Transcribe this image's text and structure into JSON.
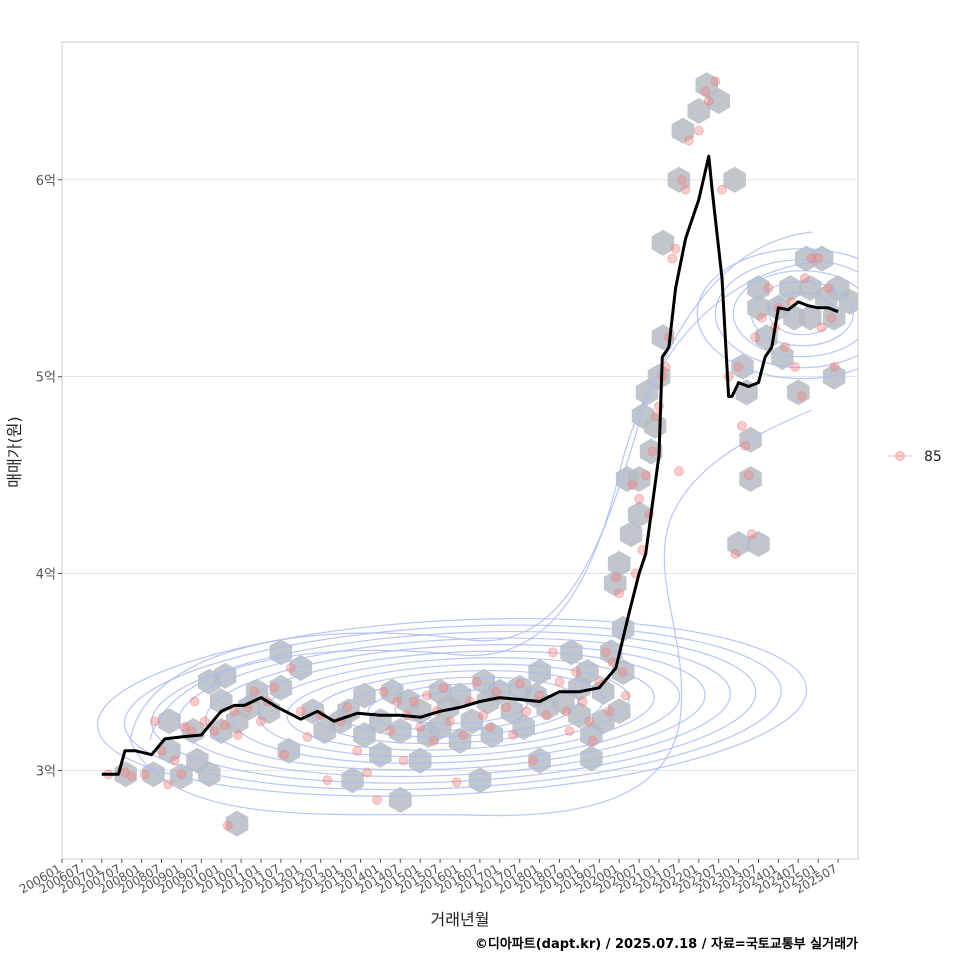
{
  "chart_data": {
    "type": "line",
    "xlabel": "거래년월",
    "ylabel": "매매가(원)",
    "caption": "©디아파트(dapt.kr) / 2025.07.18 / 자료=국토교통부 실거래가",
    "legend": {
      "position": "right",
      "entries": [
        {
          "label": "85",
          "color": "#f08080"
        }
      ]
    },
    "xlim": [
      "2006-01",
      "2026-01"
    ],
    "ylim": [
      2.55,
      6.7
    ],
    "grid": true,
    "y_unit": "억",
    "y_ticks": [
      {
        "value": 3,
        "label": "3억"
      },
      {
        "value": 4,
        "label": "4억"
      },
      {
        "value": 5,
        "label": "5억"
      },
      {
        "value": 6,
        "label": "6억"
      }
    ],
    "x_ticks": [
      "200601",
      "200607",
      "200701",
      "200707",
      "200801",
      "200807",
      "200901",
      "200907",
      "201001",
      "201007",
      "201101",
      "201107",
      "201201",
      "201207",
      "201301",
      "201307",
      "201401",
      "201407",
      "201501",
      "201507",
      "201601",
      "201607",
      "201701",
      "201707",
      "201801",
      "201807",
      "201901",
      "201907",
      "202001",
      "202007",
      "202101",
      "202107",
      "202201",
      "202207",
      "202301",
      "202307",
      "202401",
      "202407",
      "202501",
      "202507"
    ],
    "series": [
      {
        "name": "trend",
        "color": "#000000",
        "x": [
          "2007-01",
          "2007-06",
          "2007-08",
          "2007-11",
          "2008-04",
          "2008-08",
          "2009-01",
          "2009-07",
          "2010-01",
          "2010-05",
          "2010-08",
          "2011-01",
          "2011-06",
          "2012-01",
          "2012-06",
          "2012-11",
          "2013-06",
          "2014-01",
          "2014-07",
          "2015-01",
          "2015-07",
          "2016-01",
          "2016-07",
          "2017-01",
          "2017-07",
          "2018-01",
          "2018-07",
          "2019-01",
          "2019-07",
          "2019-12",
          "2020-04",
          "2020-07",
          "2020-09",
          "2021-01",
          "2021-02",
          "2021-04",
          "2021-06",
          "2021-09",
          "2022-01",
          "2022-04",
          "2022-05",
          "2022-08",
          "2022-10",
          "2022-11",
          "2023-01",
          "2023-04",
          "2023-07",
          "2023-09",
          "2023-11",
          "2024-01",
          "2024-04",
          "2024-07",
          "2024-10",
          "2025-01",
          "2025-04",
          "2025-07"
        ],
        "y": [
          2.98,
          2.98,
          3.1,
          3.1,
          3.08,
          3.16,
          3.17,
          3.18,
          3.3,
          3.33,
          3.33,
          3.37,
          3.32,
          3.26,
          3.3,
          3.25,
          3.29,
          3.28,
          3.28,
          3.27,
          3.3,
          3.32,
          3.35,
          3.37,
          3.36,
          3.35,
          3.4,
          3.4,
          3.42,
          3.52,
          3.8,
          4.0,
          4.1,
          4.6,
          5.1,
          5.15,
          5.45,
          5.7,
          5.9,
          6.12,
          5.95,
          5.5,
          4.9,
          4.9,
          4.97,
          4.95,
          4.97,
          5.1,
          5.15,
          5.35,
          5.34,
          5.38,
          5.36,
          5.35,
          5.35,
          5.33
        ]
      },
      {
        "name": "85",
        "type": "scatter",
        "color": "#f08080",
        "x": [
          "2007-03",
          "2007-08",
          "2007-10",
          "2008-02",
          "2008-05",
          "2008-07",
          "2008-09",
          "2008-11",
          "2009-01",
          "2009-02",
          "2009-04",
          "2009-05",
          "2009-08",
          "2009-11",
          "2010-02",
          "2010-03",
          "2010-05",
          "2010-06",
          "2010-09",
          "2010-11",
          "2011-01",
          "2011-03",
          "2011-05",
          "2011-08",
          "2011-10",
          "2012-01",
          "2012-03",
          "2012-07",
          "2012-09",
          "2013-01",
          "2013-03",
          "2013-06",
          "2013-09",
          "2013-12",
          "2014-02",
          "2014-04",
          "2014-06",
          "2014-08",
          "2014-09",
          "2014-11",
          "2015-01",
          "2015-03",
          "2015-05",
          "2015-06",
          "2015-08",
          "2015-10",
          "2015-12",
          "2016-02",
          "2016-04",
          "2016-06",
          "2016-08",
          "2016-10",
          "2016-12",
          "2017-03",
          "2017-05",
          "2017-07",
          "2017-09",
          "2017-11",
          "2018-01",
          "2018-03",
          "2018-05",
          "2018-07",
          "2018-09",
          "2018-10",
          "2018-12",
          "2019-02",
          "2019-04",
          "2019-05",
          "2019-07",
          "2019-09",
          "2019-10",
          "2019-11",
          "2019-12",
          "2020-01",
          "2020-02",
          "2020-03",
          "2020-05",
          "2020-06",
          "2020-07",
          "2020-08",
          "2020-09",
          "2020-10",
          "2020-11",
          "2020-12",
          "2021-01",
          "2021-02",
          "2021-03",
          "2021-04",
          "2021-05",
          "2021-06",
          "2021-07",
          "2021-08",
          "2021-09",
          "2021-10",
          "2022-01",
          "2022-03",
          "2022-04",
          "2022-06",
          "2022-08",
          "2022-10",
          "2022-12",
          "2023-01",
          "2023-02",
          "2023-03",
          "2023-04",
          "2023-05",
          "2023-06",
          "2023-08",
          "2023-10",
          "2023-12",
          "2024-01",
          "2024-03",
          "2024-05",
          "2024-06",
          "2024-08",
          "2024-09",
          "2024-11",
          "2025-01",
          "2025-02",
          "2025-04",
          "2025-05",
          "2025-06"
        ],
        "y": [
          2.98,
          2.99,
          2.97,
          2.98,
          3.25,
          3.1,
          2.93,
          3.05,
          2.98,
          3.22,
          3.2,
          3.35,
          3.25,
          3.2,
          3.23,
          2.72,
          3.3,
          3.18,
          3.32,
          3.4,
          3.25,
          3.35,
          3.42,
          3.08,
          3.52,
          3.3,
          3.17,
          3.28,
          2.95,
          3.25,
          3.32,
          3.1,
          2.99,
          2.85,
          3.4,
          3.2,
          3.35,
          3.05,
          3.28,
          3.35,
          3.22,
          3.38,
          3.15,
          3.3,
          3.42,
          3.25,
          2.94,
          3.18,
          3.35,
          3.45,
          3.28,
          3.22,
          3.4,
          3.32,
          3.18,
          3.44,
          3.3,
          3.05,
          3.38,
          3.28,
          3.6,
          3.45,
          3.3,
          3.2,
          3.5,
          3.35,
          3.25,
          3.15,
          3.45,
          3.6,
          3.3,
          3.55,
          3.98,
          3.9,
          3.5,
          3.38,
          4.45,
          4.0,
          4.38,
          4.12,
          4.5,
          4.3,
          4.62,
          4.8,
          4.85,
          5.0,
          5.05,
          5.2,
          5.6,
          5.65,
          4.52,
          6.0,
          5.95,
          6.2,
          6.25,
          6.45,
          6.4,
          6.5,
          5.95,
          5.0,
          4.1,
          5.05,
          4.75,
          4.65,
          4.5,
          4.2,
          5.2,
          5.3,
          5.45,
          5.25,
          5.35,
          5.15,
          5.38,
          5.05,
          4.9,
          5.5,
          5.6,
          5.6,
          5.25,
          5.45,
          5.3,
          5.05
        ],
        "hex_bins": [
          [
            2007.6,
            2.98
          ],
          [
            2008.3,
            2.98
          ],
          [
            2008.7,
            3.25
          ],
          [
            2008.7,
            3.1
          ],
          [
            2009.0,
            2.97
          ],
          [
            2009.4,
            3.05
          ],
          [
            2009.7,
            2.98
          ],
          [
            2009.3,
            3.2
          ],
          [
            2010.0,
            3.35
          ],
          [
            2010.0,
            3.2
          ],
          [
            2010.1,
            3.48
          ],
          [
            2009.7,
            3.45
          ],
          [
            2010.4,
            3.25
          ],
          [
            2010.4,
            2.73
          ],
          [
            2010.7,
            3.32
          ],
          [
            2010.9,
            3.4
          ],
          [
            2011.2,
            3.3
          ],
          [
            2011.5,
            3.42
          ],
          [
            2011.5,
            3.6
          ],
          [
            2011.7,
            3.1
          ],
          [
            2012.0,
            3.52
          ],
          [
            2012.3,
            3.3
          ],
          [
            2012.6,
            3.2
          ],
          [
            2013.0,
            3.25
          ],
          [
            2013.2,
            3.3
          ],
          [
            2013.3,
            2.95
          ],
          [
            2013.6,
            3.38
          ],
          [
            2013.6,
            3.18
          ],
          [
            2014.0,
            3.25
          ],
          [
            2014.0,
            3.08
          ],
          [
            2014.3,
            3.4
          ],
          [
            2014.5,
            3.2
          ],
          [
            2014.5,
            2.85
          ],
          [
            2014.7,
            3.35
          ],
          [
            2015.0,
            3.3
          ],
          [
            2015.0,
            3.05
          ],
          [
            2015.2,
            3.18
          ],
          [
            2015.5,
            3.4
          ],
          [
            2015.5,
            3.22
          ],
          [
            2015.7,
            3.32
          ],
          [
            2016.0,
            3.38
          ],
          [
            2016.0,
            3.15
          ],
          [
            2016.3,
            3.25
          ],
          [
            2016.5,
            2.95
          ],
          [
            2016.6,
            3.45
          ],
          [
            2016.7,
            3.35
          ],
          [
            2016.8,
            3.18
          ],
          [
            2017.0,
            3.4
          ],
          [
            2017.3,
            3.3
          ],
          [
            2017.5,
            3.42
          ],
          [
            2017.6,
            3.22
          ],
          [
            2017.9,
            3.38
          ],
          [
            2018.0,
            3.5
          ],
          [
            2018.0,
            3.05
          ],
          [
            2018.2,
            3.32
          ],
          [
            2018.6,
            3.35
          ],
          [
            2018.8,
            3.6
          ],
          [
            2019.0,
            3.42
          ],
          [
            2019.0,
            3.28
          ],
          [
            2019.2,
            3.5
          ],
          [
            2019.3,
            3.18
          ],
          [
            2019.3,
            3.06
          ],
          [
            2019.6,
            3.4
          ],
          [
            2019.6,
            3.25
          ],
          [
            2019.8,
            3.6
          ],
          [
            2019.9,
            3.95
          ],
          [
            2020.0,
            3.3
          ],
          [
            2020.0,
            4.05
          ],
          [
            2020.1,
            3.72
          ],
          [
            2020.1,
            3.5
          ],
          [
            2020.2,
            4.48
          ],
          [
            2020.3,
            4.2
          ],
          [
            2020.5,
            4.48
          ],
          [
            2020.5,
            4.3
          ],
          [
            2020.6,
            4.8
          ],
          [
            2020.7,
            4.92
          ],
          [
            2020.8,
            4.62
          ],
          [
            2020.9,
            4.75
          ],
          [
            2021.0,
            5.0
          ],
          [
            2021.1,
            5.2
          ],
          [
            2021.1,
            5.68
          ],
          [
            2021.5,
            6.0
          ],
          [
            2021.6,
            6.25
          ],
          [
            2022.0,
            6.35
          ],
          [
            2022.2,
            6.48
          ],
          [
            2022.5,
            6.4
          ],
          [
            2022.9,
            6.0
          ],
          [
            2023.1,
            5.05
          ],
          [
            2023.2,
            4.92
          ],
          [
            2023.3,
            4.68
          ],
          [
            2023.3,
            4.48
          ],
          [
            2023.0,
            4.15
          ],
          [
            2023.5,
            4.15
          ],
          [
            2023.5,
            5.35
          ],
          [
            2023.5,
            5.45
          ],
          [
            2023.7,
            5.2
          ],
          [
            2024.0,
            5.35
          ],
          [
            2024.1,
            5.1
          ],
          [
            2024.3,
            5.45
          ],
          [
            2024.4,
            5.3
          ],
          [
            2024.5,
            4.92
          ],
          [
            2024.7,
            5.6
          ],
          [
            2024.8,
            5.45
          ],
          [
            2024.8,
            5.3
          ],
          [
            2025.1,
            5.6
          ],
          [
            2025.2,
            5.4
          ],
          [
            2025.4,
            5.3
          ],
          [
            2025.5,
            5.45
          ],
          [
            2025.4,
            5.0
          ],
          [
            2025.8,
            5.38
          ]
        ]
      }
    ],
    "density_contours": {
      "color": "#aabcf0",
      "levels": 12
    }
  }
}
